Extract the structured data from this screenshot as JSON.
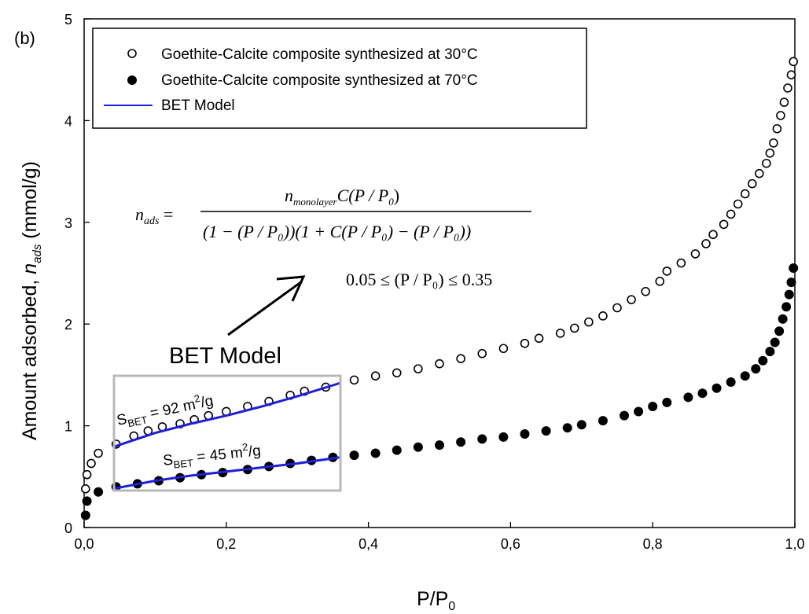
{
  "chart_data": {
    "type": "scatter",
    "panel_label": "(b)",
    "xlabel": "P/P",
    "xlabel_sub": "0",
    "ylabel_main": "Amount adsorbed, ",
    "ylabel_var": "n",
    "ylabel_sub": "ads",
    "ylabel_unit": " (mmol/g)",
    "xlim": [
      0.0,
      1.0
    ],
    "ylim": [
      0,
      5
    ],
    "x_ticks": [
      0.0,
      0.2,
      0.4,
      0.6,
      0.8,
      1.0
    ],
    "x_tick_labels": [
      "0,0",
      "0,2",
      "0,4",
      "0,6",
      "0,8",
      "1,0"
    ],
    "y_ticks": [
      0,
      1,
      2,
      3,
      4,
      5
    ],
    "y_tick_labels": [
      "0",
      "1",
      "2",
      "3",
      "4",
      "5"
    ],
    "grid": false,
    "legend_position": "top-left",
    "series": [
      {
        "name": "Goethite-Calcite composite synthesized at 30°C",
        "marker": "open-circle",
        "color": "#000000",
        "x": [
          0.002,
          0.004,
          0.01,
          0.02,
          0.045,
          0.07,
          0.09,
          0.11,
          0.135,
          0.155,
          0.175,
          0.2,
          0.23,
          0.26,
          0.29,
          0.31,
          0.34,
          0.38,
          0.41,
          0.44,
          0.47,
          0.5,
          0.53,
          0.56,
          0.59,
          0.62,
          0.64,
          0.67,
          0.69,
          0.71,
          0.73,
          0.75,
          0.77,
          0.79,
          0.81,
          0.82,
          0.84,
          0.86,
          0.875,
          0.885,
          0.9,
          0.91,
          0.92,
          0.93,
          0.94,
          0.95,
          0.96,
          0.965,
          0.97,
          0.975,
          0.98,
          0.985,
          0.99,
          0.995,
          0.998
        ],
        "y": [
          0.38,
          0.52,
          0.63,
          0.73,
          0.82,
          0.9,
          0.95,
          0.99,
          1.02,
          1.06,
          1.1,
          1.14,
          1.19,
          1.24,
          1.3,
          1.34,
          1.38,
          1.45,
          1.49,
          1.52,
          1.56,
          1.61,
          1.66,
          1.71,
          1.76,
          1.81,
          1.86,
          1.91,
          1.96,
          2.02,
          2.08,
          2.16,
          2.24,
          2.32,
          2.42,
          2.52,
          2.6,
          2.69,
          2.79,
          2.88,
          2.98,
          3.08,
          3.18,
          3.28,
          3.38,
          3.48,
          3.58,
          3.68,
          3.78,
          3.92,
          4.05,
          4.18,
          4.32,
          4.45,
          4.58
        ]
      },
      {
        "name": "Goethite-Calcite composite synthesized at 70°C",
        "marker": "filled-circle",
        "color": "#000000",
        "x": [
          0.002,
          0.004,
          0.02,
          0.045,
          0.075,
          0.105,
          0.135,
          0.165,
          0.195,
          0.23,
          0.26,
          0.29,
          0.32,
          0.35,
          0.38,
          0.41,
          0.44,
          0.47,
          0.5,
          0.53,
          0.56,
          0.59,
          0.62,
          0.65,
          0.68,
          0.7,
          0.73,
          0.76,
          0.78,
          0.8,
          0.82,
          0.85,
          0.87,
          0.89,
          0.91,
          0.93,
          0.945,
          0.955,
          0.965,
          0.972,
          0.978,
          0.983,
          0.988,
          0.992,
          0.995,
          0.998
        ],
        "y": [
          0.12,
          0.26,
          0.35,
          0.4,
          0.43,
          0.46,
          0.49,
          0.52,
          0.54,
          0.57,
          0.6,
          0.63,
          0.66,
          0.69,
          0.71,
          0.73,
          0.76,
          0.79,
          0.81,
          0.84,
          0.87,
          0.89,
          0.92,
          0.95,
          0.98,
          1.01,
          1.05,
          1.1,
          1.14,
          1.19,
          1.23,
          1.28,
          1.32,
          1.37,
          1.43,
          1.49,
          1.56,
          1.64,
          1.73,
          1.82,
          1.93,
          2.05,
          2.17,
          2.29,
          2.41,
          2.55
        ]
      },
      {
        "name": "BET Model",
        "marker": "line",
        "color": "#1f1fd6",
        "segments": [
          {
            "x": [
              0.04,
              0.1,
              0.15,
              0.2,
              0.25,
              0.3,
              0.36
            ],
            "y": [
              0.79,
              0.93,
              1.02,
              1.1,
              1.19,
              1.29,
              1.42
            ]
          },
          {
            "x": [
              0.04,
              0.1,
              0.15,
              0.2,
              0.25,
              0.3,
              0.36
            ],
            "y": [
              0.38,
              0.46,
              0.51,
              0.55,
              0.59,
              0.63,
              0.69
            ]
          }
        ]
      }
    ],
    "annotations": {
      "bet_model_label": "BET Model",
      "sbet_top": {
        "label_main": "S",
        "label_sub": "BET",
        "label_rest": " = 92 m",
        "label_sup": "2",
        "label_end": "/g"
      },
      "sbet_bottom": {
        "label_main": "S",
        "label_sub": "BET",
        "label_rest": " = 45 m",
        "label_sup": "2",
        "label_end": "/g"
      },
      "equation": {
        "lhs": "n",
        "lhs_sub": "ads",
        "numerator_n": "n",
        "numerator_n_sub": "monolayer",
        "numerator_rest": "C(P / P",
        "numerator_rest_sub": "0",
        "numerator_close": ")",
        "denominator": "(1 − (P / P₀))(1 + C(P / P₀) − (P / P₀))",
        "range": "0.05 ≤ (P / P₀) ≤ 0.35"
      }
    }
  }
}
